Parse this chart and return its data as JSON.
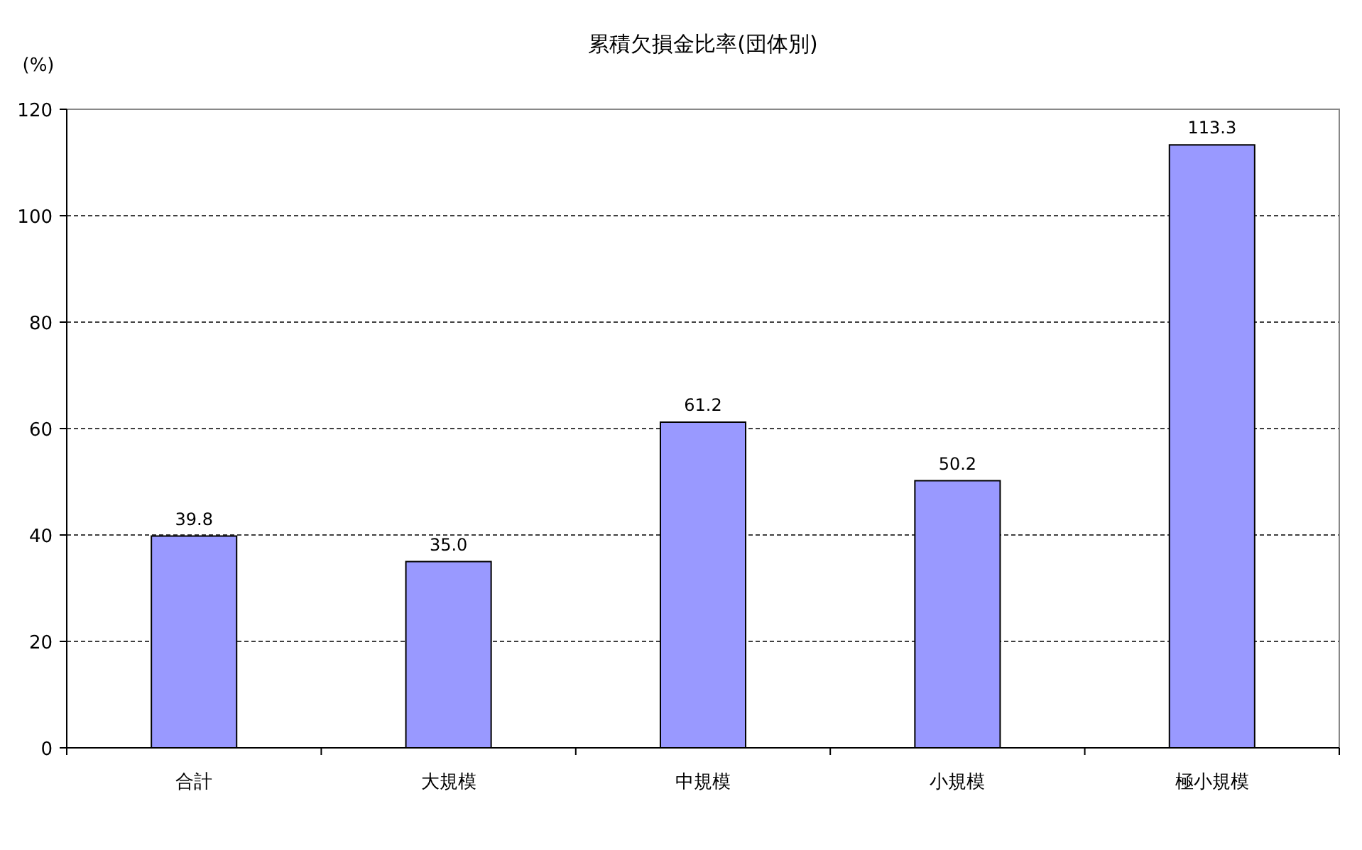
{
  "chart_data": {
    "type": "bar",
    "title": "累積欠損金比率(団体別)",
    "ylabel": "(%)",
    "categories": [
      "合計",
      "大規模",
      "中規模",
      "小規模",
      "極小規模"
    ],
    "values": [
      39.8,
      35.0,
      61.2,
      50.2,
      113.3
    ],
    "value_labels": [
      "39.8",
      "35.0",
      "61.2",
      "50.2",
      "113.3"
    ],
    "color": "#9999ff",
    "ylim": [
      0,
      120
    ],
    "yticks": [
      0,
      20,
      40,
      60,
      80,
      100,
      120
    ],
    "grid": "y"
  }
}
